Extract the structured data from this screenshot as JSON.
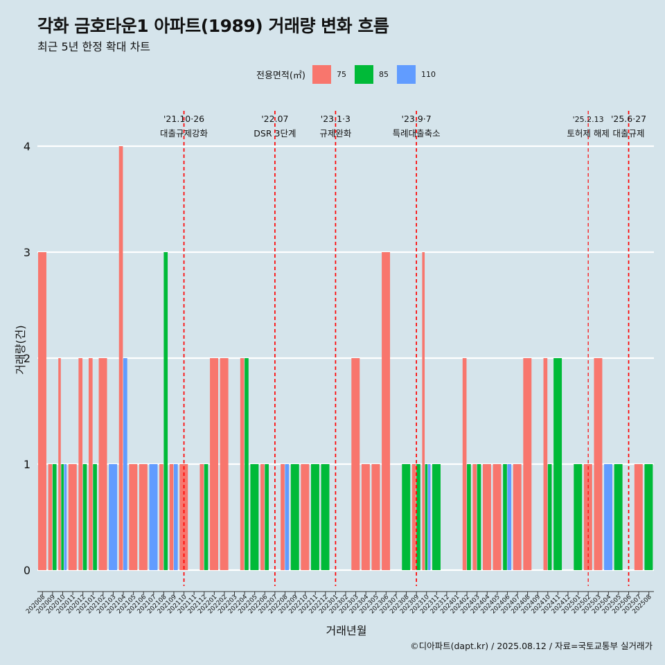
{
  "title": "각화 금호타운1 아파트(1989) 거래량 변화 흐름",
  "subtitle": "최근 5년 한정 확대 차트",
  "legend": {
    "title": "전용면적(㎡)",
    "items": [
      {
        "label": "75",
        "color": "#f8766d"
      },
      {
        "label": "85",
        "color": "#00ba38"
      },
      {
        "label": "110",
        "color": "#619cff"
      }
    ]
  },
  "caption": "©디아파트(dapt.kr) / 2025.08.12 / 자료=국토교통부 실거래가",
  "chart_data": {
    "type": "bar",
    "xlabel": "거래년월",
    "ylabel": "거래량(건)",
    "ylim": [
      0,
      4
    ],
    "yticks": [
      0,
      1,
      2,
      3,
      4
    ],
    "categories": [
      "202008",
      "202009",
      "202010",
      "202011",
      "202012",
      "202101",
      "202102",
      "202103",
      "202104",
      "202105",
      "202106",
      "202107",
      "202108",
      "202109",
      "202110",
      "202111",
      "202112",
      "202201",
      "202202",
      "202203",
      "202204",
      "202205",
      "202206",
      "202207",
      "202208",
      "202209",
      "202210",
      "202211",
      "202212",
      "202301",
      "202302",
      "202303",
      "202304",
      "202305",
      "202306",
      "202307",
      "202308",
      "202309",
      "202310",
      "202311",
      "202312",
      "202401",
      "202402",
      "202403",
      "202404",
      "202405",
      "202406",
      "202407",
      "202408",
      "202409",
      "202410",
      "202411",
      "202412",
      "202501",
      "202502",
      "202503",
      "202504",
      "202505",
      "202506",
      "202507",
      "202508"
    ],
    "series": [
      {
        "name": "75",
        "color": "#f8766d",
        "values": [
          3,
          1,
          2,
          1,
          2,
          2,
          2,
          0,
          4,
          1,
          1,
          0,
          1,
          1,
          1,
          0,
          1,
          2,
          2,
          0,
          2,
          0,
          1,
          0,
          1,
          0,
          1,
          0,
          0,
          0,
          0,
          2,
          1,
          1,
          3,
          0,
          0,
          1,
          3,
          0,
          0,
          0,
          2,
          1,
          1,
          1,
          0,
          1,
          2,
          0,
          2,
          0,
          0,
          0,
          1,
          2,
          0,
          0,
          0,
          1,
          0
        ]
      },
      {
        "name": "85",
        "color": "#00ba38",
        "values": [
          0,
          1,
          1,
          0,
          1,
          1,
          0,
          0,
          0,
          0,
          0,
          0,
          3,
          0,
          0,
          0,
          1,
          0,
          0,
          0,
          2,
          1,
          1,
          0,
          0,
          1,
          0,
          1,
          1,
          0,
          0,
          0,
          0,
          0,
          0,
          0,
          1,
          1,
          1,
          1,
          0,
          0,
          1,
          1,
          0,
          0,
          1,
          0,
          0,
          0,
          1,
          2,
          0,
          1,
          0,
          0,
          0,
          1,
          0,
          0,
          1
        ]
      },
      {
        "name": "110",
        "color": "#619cff",
        "values": [
          0,
          0,
          1,
          0,
          0,
          0,
          0,
          1,
          2,
          0,
          0,
          1,
          0,
          1,
          0,
          0,
          0,
          0,
          0,
          0,
          0,
          0,
          0,
          0,
          1,
          0,
          0,
          0,
          0,
          0,
          0,
          0,
          0,
          0,
          0,
          0,
          0,
          0,
          1,
          0,
          0,
          0,
          0,
          0,
          0,
          0,
          1,
          0,
          0,
          0,
          0,
          0,
          0,
          0,
          0,
          0,
          1,
          0,
          0,
          0,
          0
        ]
      }
    ],
    "annotations": [
      {
        "at": "202110",
        "line1": "'21.10·26",
        "line2": "대출규제강화"
      },
      {
        "at": "202207",
        "line1": "'22.07",
        "line2": "DSR 3단계"
      },
      {
        "at": "202301",
        "line1": "'23.1·3",
        "line2": "규제완화"
      },
      {
        "at": "202309",
        "line1": "'23.9·7",
        "line2": "특례대출축소"
      },
      {
        "at": "202502",
        "line1": "'25.2.13",
        "line2": "토허제 해제"
      },
      {
        "at": "202506",
        "line1": "'25.6·27",
        "line2": "대출규제"
      }
    ]
  }
}
